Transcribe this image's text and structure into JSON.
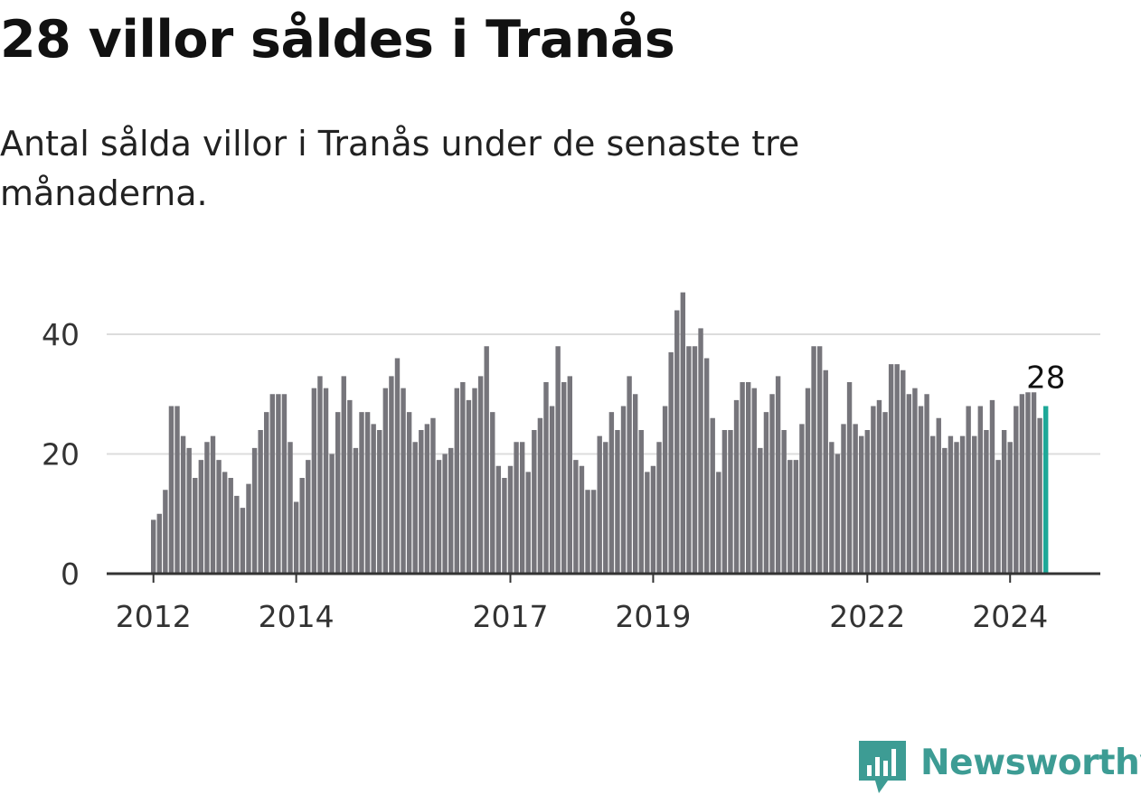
{
  "title": "28 villor såldes i Tranås",
  "subtitle": "Antal sålda villor i Tranås under de senaste tre månaderna.",
  "brand": {
    "name": "Newsworthy",
    "color": "#3d9c94"
  },
  "colors": {
    "bar": "#76757b",
    "highlight": "#1ea898",
    "grid": "#dcdcdc",
    "axis": "#333333",
    "tick_text": "#333333"
  },
  "chart_data": {
    "type": "bar",
    "title": "28 villor såldes i Tranås",
    "subtitle": "Antal sålda villor i Tranås under de senaste tre månaderna.",
    "xlabel": "",
    "ylabel": "",
    "ylim": [
      0,
      48
    ],
    "yticks": [
      0,
      20,
      40
    ],
    "grid": true,
    "legend": "none",
    "x_tick_labels": [
      {
        "label": "2012",
        "index": 0
      },
      {
        "label": "2014",
        "index": 24
      },
      {
        "label": "2017",
        "index": 60
      },
      {
        "label": "2019",
        "index": 84
      },
      {
        "label": "2022",
        "index": 120
      },
      {
        "label": "2024",
        "index": 144
      }
    ],
    "first_month": "2012-01",
    "values": [
      9,
      10,
      14,
      28,
      28,
      23,
      21,
      16,
      19,
      22,
      23,
      19,
      17,
      16,
      13,
      11,
      15,
      21,
      24,
      27,
      30,
      30,
      30,
      22,
      12,
      16,
      19,
      31,
      33,
      31,
      20,
      27,
      33,
      29,
      21,
      27,
      27,
      25,
      24,
      31,
      33,
      36,
      31,
      27,
      22,
      24,
      25,
      26,
      19,
      20,
      21,
      31,
      32,
      29,
      31,
      33,
      38,
      27,
      18,
      16,
      18,
      22,
      22,
      17,
      24,
      26,
      32,
      28,
      38,
      32,
      33,
      19,
      18,
      14,
      14,
      23,
      22,
      27,
      24,
      28,
      33,
      30,
      24,
      17,
      18,
      22,
      28,
      37,
      44,
      47,
      38,
      38,
      41,
      36,
      26,
      17,
      24,
      24,
      29,
      32,
      32,
      31,
      21,
      27,
      30,
      33,
      24,
      19,
      19,
      25,
      31,
      38,
      38,
      34,
      22,
      20,
      25,
      32,
      25,
      23,
      24,
      28,
      29,
      27,
      35,
      35,
      34,
      30,
      31,
      28,
      30,
      23,
      26,
      21,
      23,
      22,
      23,
      28,
      23,
      28,
      24,
      29,
      19,
      24,
      22,
      28,
      30,
      30.3,
      30.3,
      26,
      28
    ],
    "highlight_last": true,
    "annotations": [
      {
        "text": "28",
        "target": "last"
      }
    ]
  }
}
